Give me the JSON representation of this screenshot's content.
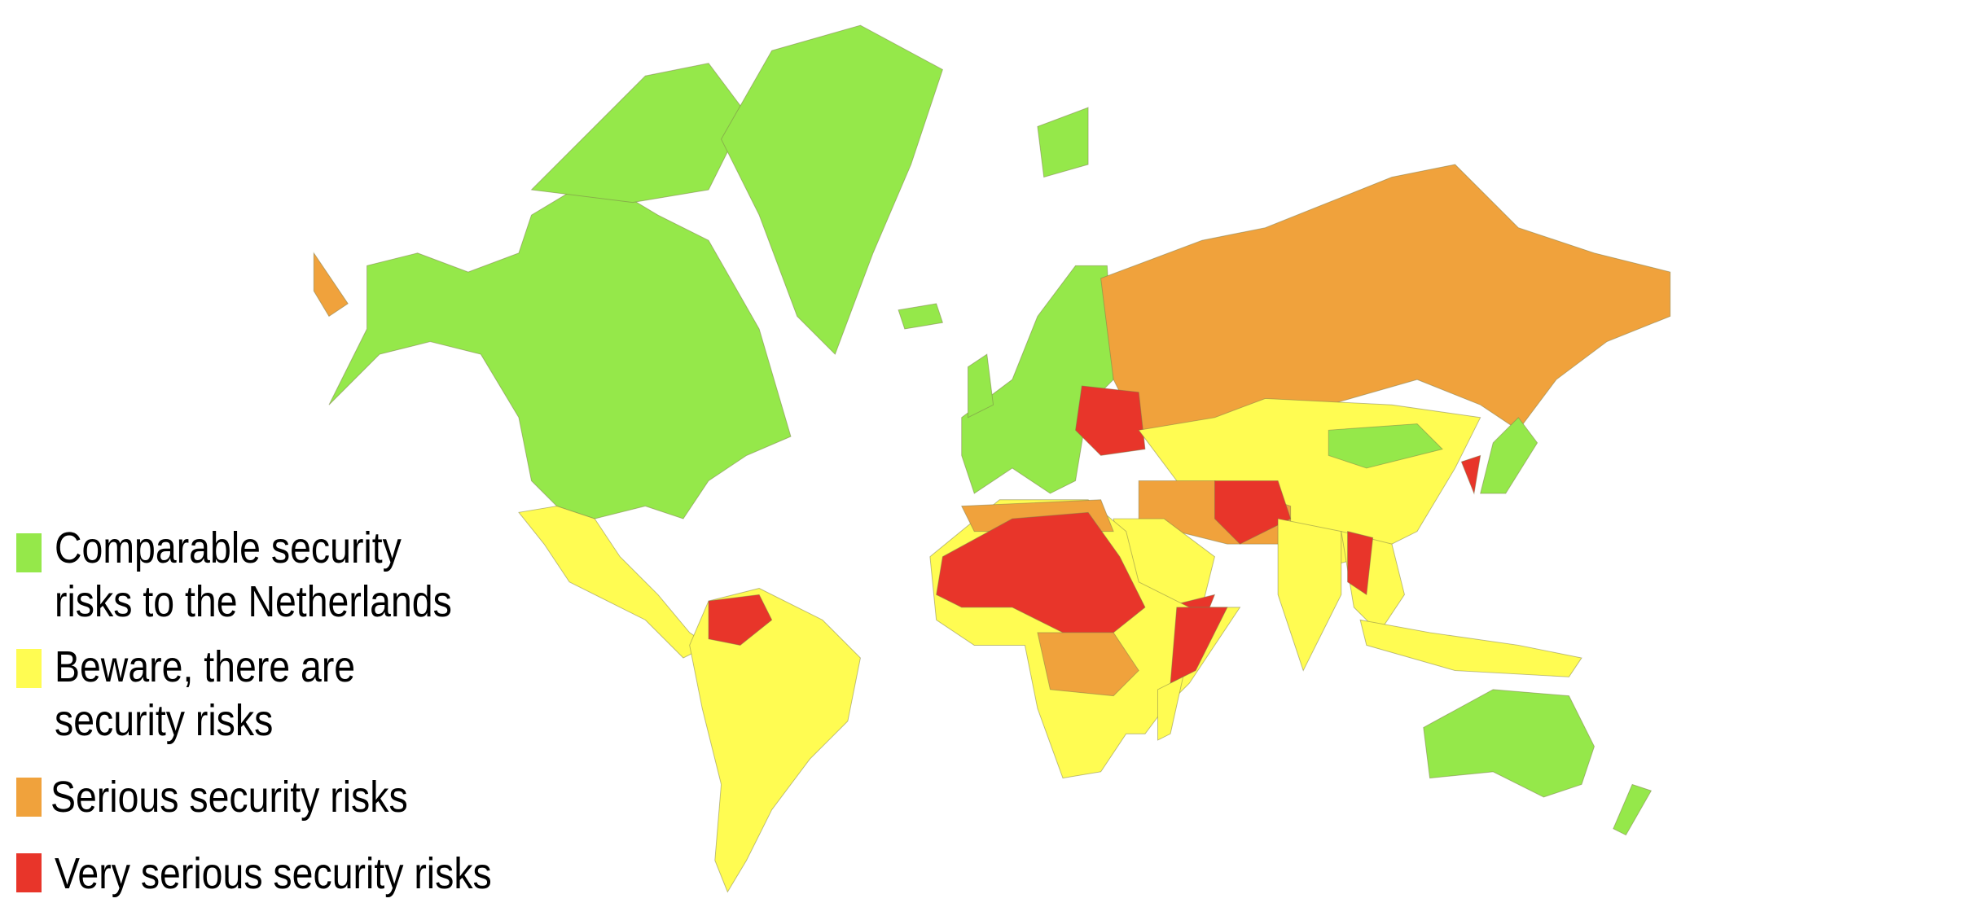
{
  "legend": [
    {
      "key": "comparable",
      "lines": [
        "Comparable security",
        "risks to the Netherlands"
      ],
      "color": "#95e84a"
    },
    {
      "key": "beware",
      "lines": [
        "Beware, there are",
        "security risks"
      ],
      "color": "#fffc52"
    },
    {
      "key": "serious",
      "lines": [
        "Serious security risks"
      ],
      "color": "#f0a23c"
    },
    {
      "key": "very_serious",
      "lines": [
        "Very serious security risks"
      ],
      "color": "#e8352a"
    }
  ]
}
